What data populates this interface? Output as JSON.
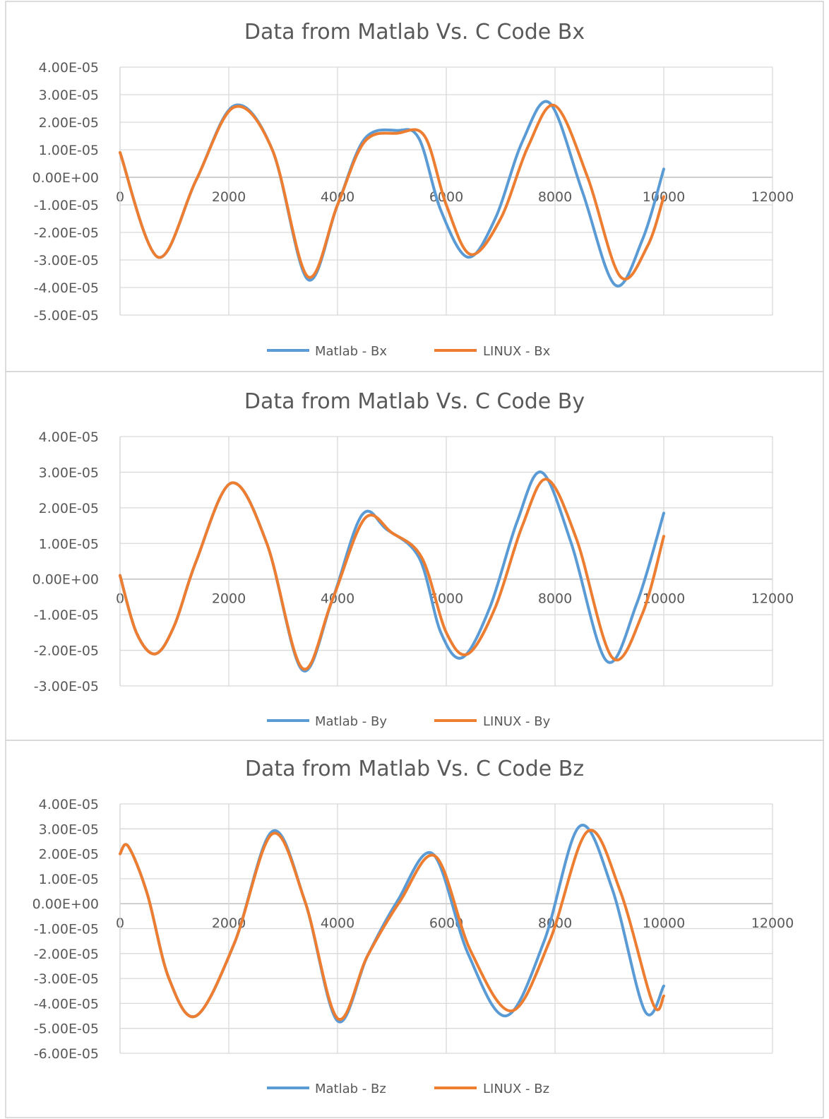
{
  "colors": {
    "matlab": "#5b9bd5",
    "linux": "#ed7d31",
    "grid": "#d9d9d9",
    "text": "#595959"
  },
  "chart_data": [
    {
      "type": "line",
      "title": "Data from Matlab Vs. C Code Bx",
      "xlim": [
        0,
        12000
      ],
      "ylim": [
        -5e-05,
        4e-05
      ],
      "x_ticks": [
        "0",
        "2000",
        "4000",
        "6000",
        "8000",
        "10000",
        "12000"
      ],
      "y_ticks": [
        "4.00E-05",
        "3.00E-05",
        "2.00E-05",
        "1.00E-05",
        "0.00E+00",
        "-1.00E-05",
        "-2.00E-05",
        "-3.00E-05",
        "-4.00E-05",
        "-5.00E-05"
      ],
      "grid": true,
      "legend_position": "bottom",
      "series": [
        {
          "name": "Matlab - Bx",
          "color": "#5b9bd5",
          "x": [
            0,
            700,
            1400,
            2100,
            2800,
            3450,
            4000,
            4500,
            5100,
            5500,
            5900,
            6400,
            6900,
            7400,
            7900,
            8500,
            9100,
            9600,
            10000
          ],
          "y": [
            9e-06,
            -2.9e-05,
            -1e-06,
            2.6e-05,
            1e-05,
            -3.7e-05,
            -1e-05,
            1.4e-05,
            1.7e-05,
            1.4e-05,
            -1.2e-05,
            -2.9e-05,
            -1.5e-05,
            1.3e-05,
            2.7e-05,
            -5e-06,
            -3.9e-05,
            -2.3e-05,
            3e-06
          ]
        },
        {
          "name": "LINUX - Bx",
          "color": "#ed7d31",
          "x": [
            0,
            700,
            1400,
            2100,
            2800,
            3450,
            4000,
            4500,
            5100,
            5600,
            6000,
            6450,
            7000,
            7500,
            8000,
            8600,
            9200,
            9700,
            10000
          ],
          "y": [
            9e-06,
            -2.9e-05,
            -1e-06,
            2.55e-05,
            1e-05,
            -3.6e-05,
            -1e-05,
            1.3e-05,
            1.6e-05,
            1.5e-05,
            -1e-05,
            -2.8e-05,
            -1.5e-05,
            1.1e-05,
            2.6e-05,
            0,
            -3.6e-05,
            -2.5e-05,
            -7e-06
          ]
        }
      ]
    },
    {
      "type": "line",
      "title": "Data from Matlab Vs. C Code By",
      "xlim": [
        0,
        12000
      ],
      "ylim": [
        -3e-05,
        4e-05
      ],
      "x_ticks": [
        "0",
        "2000",
        "4000",
        "6000",
        "8000",
        "10000",
        "12000"
      ],
      "y_ticks": [
        "4.00E-05",
        "3.00E-05",
        "2.00E-05",
        "1.00E-05",
        "0.00E+00",
        "-1.00E-05",
        "-2.00E-05",
        "-3.00E-05"
      ],
      "grid": true,
      "legend_position": "bottom",
      "series": [
        {
          "name": "Matlab - By",
          "color": "#5b9bd5",
          "x": [
            0,
            300,
            650,
            1000,
            1400,
            2050,
            2700,
            3350,
            3900,
            4450,
            4900,
            5500,
            5900,
            6300,
            6800,
            7300,
            7750,
            8300,
            8950,
            9500,
            10000
          ],
          "y": [
            1e-06,
            -1.5e-05,
            -2.1e-05,
            -1.3e-05,
            5e-06,
            2.7e-05,
            1e-05,
            -2.55e-05,
            -6e-06,
            1.8e-05,
            1.4e-05,
            6e-06,
            -1.5e-05,
            -2.2e-05,
            -8e-06,
            1.6e-05,
            3e-05,
            1e-05,
            -2.3e-05,
            -7e-06,
            1.85e-05
          ]
        },
        {
          "name": "LINUX - By",
          "color": "#ed7d31",
          "x": [
            0,
            300,
            650,
            1000,
            1400,
            2050,
            2700,
            3350,
            3900,
            4500,
            5000,
            5550,
            6000,
            6400,
            6900,
            7400,
            7850,
            8400,
            9050,
            9600,
            10000
          ],
          "y": [
            1e-06,
            -1.5e-05,
            -2.1e-05,
            -1.3e-05,
            5e-06,
            2.7e-05,
            1e-05,
            -2.5e-05,
            -6e-06,
            1.7e-05,
            1.3e-05,
            6e-06,
            -1.5e-05,
            -2.1e-05,
            -8e-06,
            1.5e-05,
            2.8e-05,
            1.1e-05,
            -2.2e-05,
            -1e-05,
            1.2e-05
          ]
        }
      ]
    },
    {
      "type": "line",
      "title": "Data from Matlab Vs. C Code Bz",
      "xlim": [
        0,
        12000
      ],
      "ylim": [
        -6e-05,
        4e-05
      ],
      "x_ticks": [
        "0",
        "2000",
        "4000",
        "6000",
        "8000",
        "10000",
        "12000"
      ],
      "y_ticks": [
        "4.00E-05",
        "3.00E-05",
        "2.00E-05",
        "1.00E-05",
        "0.00E+00",
        "-1.00E-05",
        "-2.00E-05",
        "-3.00E-05",
        "-4.00E-05",
        "-5.00E-05",
        "-6.00E-05"
      ],
      "grid": true,
      "legend_position": "bottom",
      "series": [
        {
          "name": "Matlab - Bz",
          "color": "#5b9bd5",
          "x": [
            0,
            150,
            500,
            900,
            1400,
            2100,
            2800,
            3400,
            4000,
            4550,
            5100,
            5750,
            6400,
            7100,
            7800,
            8450,
            9050,
            9650,
            10000
          ],
          "y": [
            2e-05,
            2.3e-05,
            4e-06,
            -3e-05,
            -4.5e-05,
            -1.6e-05,
            2.9e-05,
            1e-06,
            -4.7e-05,
            -2.1e-05,
            1e-06,
            2e-05,
            -2e-05,
            -4.5e-05,
            -1.5e-05,
            3.1e-05,
            6e-06,
            -4.3e-05,
            -3.3e-05
          ]
        },
        {
          "name": "LINUX - Bz",
          "color": "#ed7d31",
          "x": [
            0,
            150,
            500,
            900,
            1400,
            2100,
            2800,
            3400,
            4000,
            4550,
            5150,
            5800,
            6450,
            7200,
            7900,
            8600,
            9200,
            9800,
            10000
          ],
          "y": [
            2e-05,
            2.3e-05,
            4e-06,
            -3e-05,
            -4.5e-05,
            -1.6e-05,
            2.8e-05,
            1e-06,
            -4.6e-05,
            -2.1e-05,
            1e-06,
            1.9e-05,
            -1.9e-05,
            -4.3e-05,
            -1.5e-05,
            2.9e-05,
            5e-06,
            -4e-05,
            -3.7e-05
          ]
        }
      ]
    }
  ]
}
